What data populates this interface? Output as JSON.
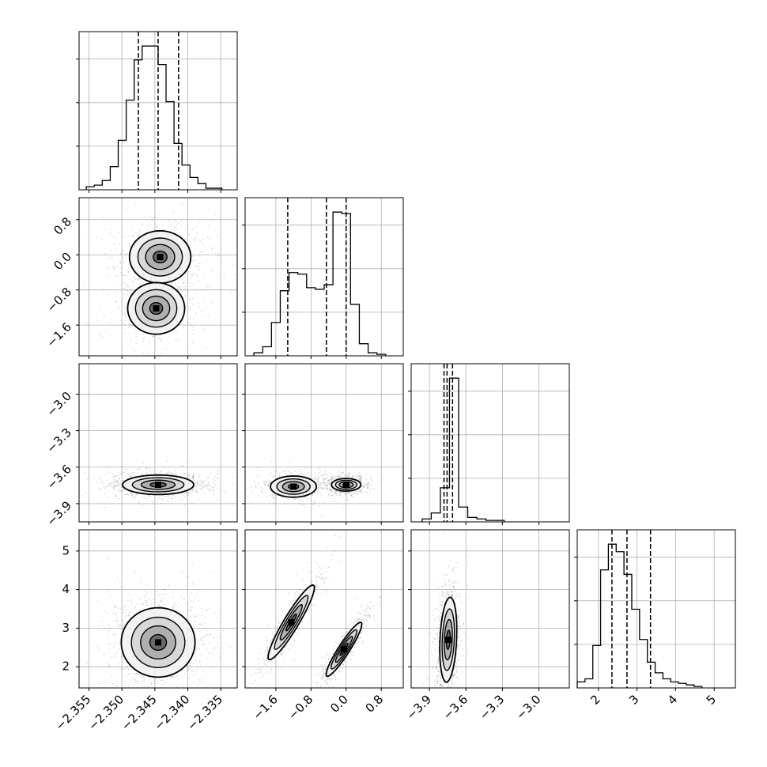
{
  "figure": {
    "title": ""
  },
  "colors": {
    "frame": "#000000",
    "grid": "#b0b0b0",
    "density": "#000000",
    "background": "#ffffff"
  },
  "chart_data": {
    "type": "corner",
    "grid": true,
    "parameters": [
      {
        "label": "",
        "range": [
          -2.3565,
          -2.3325
        ],
        "ticks": [
          "-2.355",
          "-2.350",
          "-2.345",
          "-2.340",
          "-2.335"
        ],
        "tick_values": [
          -2.355,
          -2.35,
          -2.345,
          -2.34,
          -2.335
        ],
        "quantiles": [
          -2.3475,
          -2.3445,
          -2.3414
        ],
        "histogram": {
          "start": -2.3554,
          "width": 0.00121,
          "counts": [
            2,
            3,
            6,
            15,
            32,
            58,
            84,
            93,
            93,
            81,
            57,
            30,
            16,
            8,
            4,
            1,
            1
          ]
        }
      },
      {
        "label": "",
        "range": [
          -2.3,
          1.3
        ],
        "ticks": [
          "-1.6",
          "-0.8",
          "0.0",
          "0.8"
        ],
        "tick_values": [
          -1.6,
          -0.8,
          0.0,
          0.8
        ],
        "quantiles": [
          -1.33,
          -0.45,
          0.0
        ],
        "histogram": {
          "start": -2.1,
          "width": 0.2,
          "counts": [
            2,
            6,
            22,
            43,
            55,
            54,
            45,
            44,
            47,
            95,
            94,
            34,
            8,
            2,
            1
          ]
        }
      },
      {
        "label": "",
        "range": [
          -4.05,
          -2.75
        ],
        "ticks": [
          "-3.9",
          "-3.6",
          "-3.3",
          "-3.0"
        ],
        "tick_values": [
          -3.9,
          -3.6,
          -3.3,
          -3.0
        ],
        "quantiles": [
          -3.78,
          -3.755,
          -3.71
        ],
        "histogram": {
          "start": -3.96,
          "width": 0.075,
          "counts": [
            2,
            6,
            23,
            97,
            10,
            3,
            2,
            1,
            1
          ]
        }
      },
      {
        "label": "",
        "range": [
          1.45,
          5.55
        ],
        "ticks": [
          "2",
          "3",
          "4",
          "5"
        ],
        "tick_values": [
          2,
          3,
          4,
          5
        ],
        "quantiles": [
          2.35,
          2.74,
          3.35
        ],
        "histogram": {
          "start": 1.45,
          "width": 0.202,
          "counts": [
            4,
            6,
            28,
            78,
            95,
            90,
            75,
            52,
            32,
            17,
            10,
            6,
            4,
            3,
            2,
            1
          ]
        }
      }
    ],
    "pairs": [
      {
        "x_param": 0,
        "y_param": 1,
        "rho": 0.0,
        "modes": [
          {
            "mean": [
              -2.3442,
              -0.05
            ],
            "sd": [
              0.0025,
              0.32
            ],
            "weight": 0.62
          },
          {
            "mean": [
              -2.3448,
              -1.22
            ],
            "sd": [
              0.0025,
              0.34
            ],
            "weight": 0.38
          }
        ]
      },
      {
        "x_param": 0,
        "y_param": 2,
        "rho": 0.0,
        "modes": [
          {
            "mean": [
              -2.3445,
              -3.745
            ],
            "sd": [
              0.0027,
              0.04
            ],
            "weight": 1.0
          }
        ]
      },
      {
        "x_param": 1,
        "y_param": 2,
        "rho": 0.0,
        "modes": [
          {
            "mean": [
              0.0,
              -3.745
            ],
            "sd": [
              0.18,
              0.028
            ],
            "weight": 0.6
          },
          {
            "mean": [
              -1.2,
              -3.76
            ],
            "sd": [
              0.3,
              0.05
            ],
            "weight": 0.4
          }
        ]
      },
      {
        "x_param": 0,
        "y_param": 3,
        "rho": 0.0,
        "modes": [
          {
            "mean": [
              -2.3445,
              2.63
            ],
            "sd": [
              0.0028,
              0.45
            ],
            "weight": 1.0
          }
        ]
      },
      {
        "x_param": 1,
        "y_param": 3,
        "rho": 0.93,
        "modes": [
          {
            "mean": [
              -0.05,
              2.45
            ],
            "sd": [
              0.22,
              0.38
            ],
            "weight": 0.58
          },
          {
            "mean": [
              -1.25,
              3.15
            ],
            "sd": [
              0.3,
              0.55
            ],
            "weight": 0.42
          }
        ]
      },
      {
        "x_param": 2,
        "y_param": 3,
        "rho": 0.22,
        "modes": [
          {
            "mean": [
              -3.745,
              2.7
            ],
            "sd": [
              0.035,
              0.55
            ],
            "weight": 1.0
          }
        ]
      }
    ]
  }
}
